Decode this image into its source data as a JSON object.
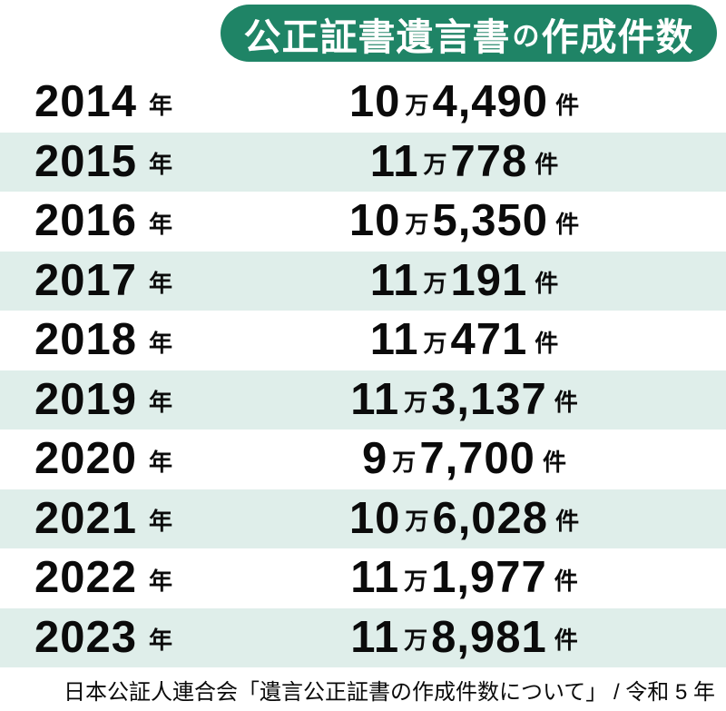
{
  "header": {
    "title_main": "公正証書遺言書",
    "title_particle": "の",
    "title_tail": "作成件数"
  },
  "units": {
    "year": "年",
    "man": "万",
    "count": "件"
  },
  "table": {
    "rows": [
      {
        "year": "2014",
        "man": "10",
        "rest": "4,490"
      },
      {
        "year": "2015",
        "man": "11",
        "rest": "778"
      },
      {
        "year": "2016",
        "man": "10",
        "rest": "5,350"
      },
      {
        "year": "2017",
        "man": "11",
        "rest": "191"
      },
      {
        "year": "2018",
        "man": "11",
        "rest": "471"
      },
      {
        "year": "2019",
        "man": "11",
        "rest": "3,137"
      },
      {
        "year": "2020",
        "man": "9",
        "rest": "7,700"
      },
      {
        "year": "2021",
        "man": "10",
        "rest": "6,028"
      },
      {
        "year": "2022",
        "man": "11",
        "rest": "1,977"
      },
      {
        "year": "2023",
        "man": "11",
        "rest": "8,981"
      }
    ]
  },
  "footer": {
    "source": "日本公証人連合会「遺言公正証書の作成件数について」 / 令和 5 年"
  },
  "colors": {
    "accent_green": "#1f8466",
    "row_mint": "#dfeeea",
    "text": "#0b0b0b",
    "title_text": "#ffffff"
  },
  "chart_data": {
    "type": "table",
    "title": "公正証書遺言書の作成件数",
    "categories": [
      "2014",
      "2015",
      "2016",
      "2017",
      "2018",
      "2019",
      "2020",
      "2021",
      "2022",
      "2023"
    ],
    "values": [
      104490,
      110778,
      105350,
      110191,
      110471,
      113137,
      97700,
      106028,
      111977,
      118981
    ],
    "value_labels": [
      "10万4,490件",
      "11万778件",
      "10万5,350件",
      "11万191件",
      "11万471件",
      "11万3,137件",
      "9万7,700件",
      "10万6,028件",
      "11万1,977件",
      "11万8,981件"
    ],
    "xlabel": "年",
    "ylabel": "件",
    "source": "日本公証人連合会「遺言公正証書の作成件数について」 / 令和 5 年",
    "layout": "alternating striped rows, title in rounded green pill top-right, source note bottom"
  }
}
